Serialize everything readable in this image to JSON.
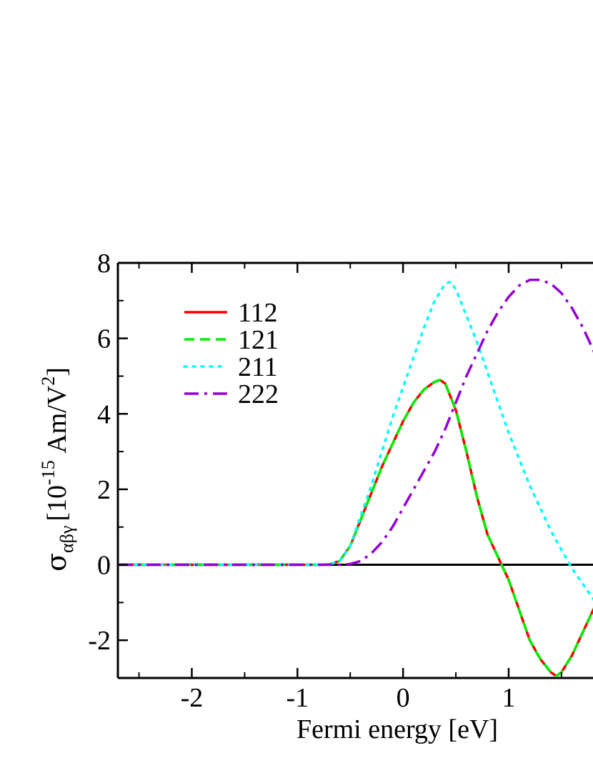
{
  "chart_data": {
    "type": "line",
    "xlabel": "Fermi energy [eV]",
    "ylabel_parts": {
      "symbol": "σ",
      "subscript": "αβγ",
      "unit_open": "[10",
      "exponent": "-15",
      "unit_mid": " Am/V",
      "unit_exp": "2",
      "unit_close": "]"
    },
    "xlim": [
      -2.7,
      1.9
    ],
    "ylim": [
      -3.0,
      8.0
    ],
    "x_ticks": [
      -2,
      -1,
      0,
      1
    ],
    "y_ticks": [
      -2,
      0,
      2,
      4,
      6,
      8
    ],
    "x_tick_labels": [
      "-2",
      "-1",
      "0",
      "1"
    ],
    "y_tick_labels": [
      "-2",
      "0",
      "2",
      "4",
      "6",
      "8"
    ],
    "grid": false,
    "zero_line": true,
    "legend_position": "top-left",
    "series": [
      {
        "name": "112",
        "color": "#ff0000",
        "style": "solid",
        "x": [
          -2.7,
          -0.8,
          -0.7,
          -0.6,
          -0.5,
          -0.4,
          -0.3,
          -0.2,
          -0.1,
          0.0,
          0.1,
          0.2,
          0.3,
          0.35,
          0.4,
          0.5,
          0.6,
          0.7,
          0.8,
          0.9,
          1.0,
          1.1,
          1.2,
          1.3,
          1.4,
          1.45,
          1.5,
          1.6,
          1.7,
          1.8,
          1.9
        ],
        "y": [
          0,
          0,
          0.01,
          0.1,
          0.5,
          1.2,
          1.9,
          2.6,
          3.2,
          3.8,
          4.3,
          4.65,
          4.85,
          4.9,
          4.8,
          4.1,
          3.0,
          1.8,
          0.8,
          0.2,
          -0.4,
          -1.2,
          -2.0,
          -2.5,
          -2.85,
          -2.95,
          -2.85,
          -2.4,
          -1.8,
          -1.2,
          -0.6
        ]
      },
      {
        "name": "121",
        "color": "#00ee00",
        "style": "dashed",
        "x": [
          -2.7,
          -0.8,
          -0.7,
          -0.6,
          -0.5,
          -0.4,
          -0.3,
          -0.2,
          -0.1,
          0.0,
          0.1,
          0.2,
          0.3,
          0.35,
          0.4,
          0.5,
          0.6,
          0.7,
          0.8,
          0.9,
          1.0,
          1.1,
          1.2,
          1.3,
          1.4,
          1.45,
          1.5,
          1.6,
          1.7,
          1.8,
          1.9
        ],
        "y": [
          0,
          0,
          0.01,
          0.1,
          0.5,
          1.2,
          1.9,
          2.6,
          3.2,
          3.8,
          4.3,
          4.65,
          4.85,
          4.9,
          4.8,
          4.1,
          3.0,
          1.8,
          0.8,
          0.2,
          -0.4,
          -1.2,
          -2.0,
          -2.5,
          -2.85,
          -2.95,
          -2.85,
          -2.4,
          -1.8,
          -1.2,
          -0.6
        ]
      },
      {
        "name": "211",
        "color": "#00ffff",
        "style": "dotted",
        "x": [
          -2.7,
          -0.8,
          -0.7,
          -0.6,
          -0.5,
          -0.4,
          -0.3,
          -0.2,
          -0.1,
          0.0,
          0.1,
          0.2,
          0.3,
          0.4,
          0.45,
          0.5,
          0.6,
          0.7,
          0.8,
          0.9,
          1.0,
          1.1,
          1.2,
          1.3,
          1.4,
          1.5,
          1.6,
          1.7,
          1.8,
          1.9
        ],
        "y": [
          0,
          0,
          0.01,
          0.1,
          0.5,
          1.3,
          2.1,
          3.0,
          3.9,
          4.7,
          5.5,
          6.3,
          7.0,
          7.45,
          7.5,
          7.3,
          6.6,
          5.9,
          5.1,
          4.3,
          3.5,
          2.8,
          2.1,
          1.5,
          0.9,
          0.4,
          -0.1,
          -0.5,
          -0.9,
          -1.3
        ]
      },
      {
        "name": "222",
        "color": "#9400d3",
        "style": "dashdot",
        "x": [
          -2.7,
          -0.6,
          -0.5,
          -0.4,
          -0.3,
          -0.2,
          -0.1,
          0.0,
          0.1,
          0.2,
          0.3,
          0.4,
          0.5,
          0.6,
          0.7,
          0.8,
          0.9,
          1.0,
          1.1,
          1.2,
          1.3,
          1.4,
          1.5,
          1.6,
          1.7,
          1.8,
          1.9
        ],
        "y": [
          0,
          0,
          0.02,
          0.1,
          0.3,
          0.6,
          1.0,
          1.5,
          2.0,
          2.5,
          3.0,
          3.6,
          4.3,
          5.0,
          5.6,
          6.2,
          6.7,
          7.1,
          7.4,
          7.55,
          7.55,
          7.45,
          7.2,
          6.8,
          6.3,
          5.7,
          5.0
        ]
      }
    ]
  }
}
